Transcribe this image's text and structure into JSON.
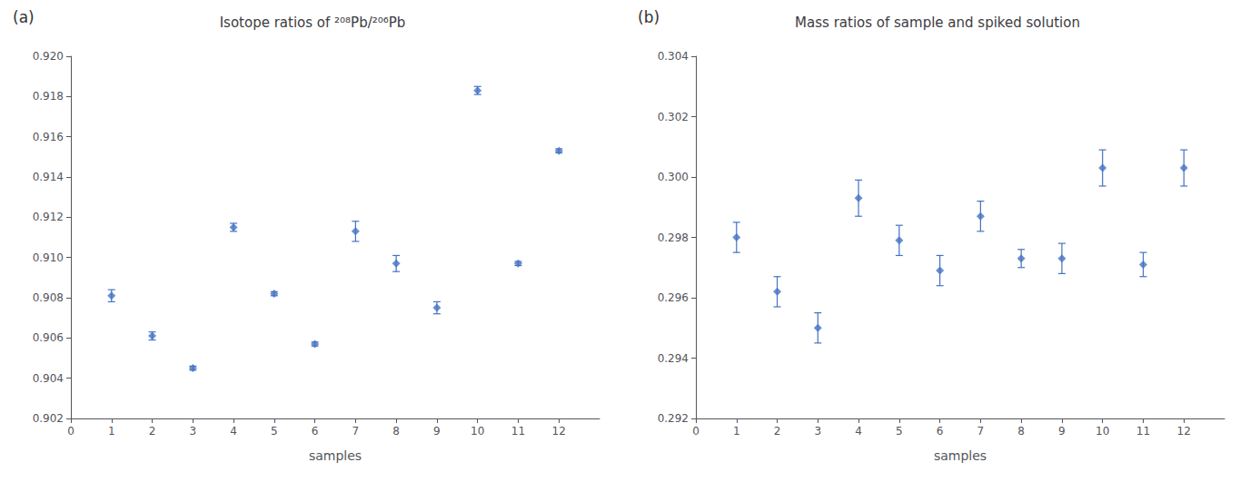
{
  "chart_data": [
    {
      "type": "scatter",
      "title": "Isotope ratios of ²⁰⁸Pb/²⁰⁶Pb",
      "xlabel": "samples",
      "annotations": [
        "(a)"
      ],
      "x": [
        1,
        2,
        3,
        4,
        5,
        6,
        7,
        8,
        9,
        10,
        11,
        12
      ],
      "values": [
        0.9081,
        0.9061,
        0.9045,
        0.9115,
        0.9082,
        0.9057,
        0.9113,
        0.9097,
        0.9075,
        0.9183,
        0.9097,
        0.9153
      ],
      "yerr": [
        0.0003,
        0.0002,
        0.0001,
        0.0002,
        0.0001,
        0.0001,
        0.0005,
        0.0004,
        0.0003,
        0.0002,
        0.0001,
        0.0001
      ],
      "color": "#4472C4",
      "marker": "diamond",
      "grid": false,
      "xlim": [
        0,
        13
      ],
      "xticks": [
        0,
        1,
        2,
        3,
        4,
        5,
        6,
        7,
        8,
        9,
        10,
        11,
        12
      ],
      "ylim": [
        0.902,
        0.92
      ],
      "yticks": [
        0.902,
        0.904,
        0.906,
        0.908,
        {
          "value": 0.91,
          "label": "0.910"
        },
        0.912,
        0.914,
        0.916,
        0.918,
        {
          "value": 0.92,
          "label": "0.920"
        }
      ]
    },
    {
      "type": "scatter",
      "title": "Mass ratios of sample and spiked solution",
      "xlabel": "samples",
      "annotations": [
        "(b)"
      ],
      "x": [
        1,
        2,
        3,
        4,
        5,
        6,
        7,
        8,
        9,
        10,
        11,
        12
      ],
      "values": [
        0.298,
        0.2962,
        0.295,
        0.2993,
        0.2979,
        0.2969,
        0.2987,
        0.2973,
        0.2973,
        0.3003,
        0.2971,
        0.3003
      ],
      "yerr": [
        0.0005,
        0.0005,
        0.0005,
        0.0006,
        0.0005,
        0.0005,
        0.0005,
        0.0003,
        0.0005,
        0.0006,
        0.0004,
        0.0006
      ],
      "color": "#4472C4",
      "marker": "diamond",
      "grid": false,
      "xlim": [
        0,
        13
      ],
      "xticks": [
        0,
        1,
        2,
        3,
        4,
        5,
        6,
        7,
        8,
        9,
        10,
        11,
        12
      ],
      "ylim": [
        0.292,
        0.304
      ],
      "yticks": [
        {
          "value": 0.292,
          "label": "0.292"
        },
        0.294,
        0.296,
        0.298,
        {
          "value": 0.3,
          "label": "0.300"
        },
        0.302,
        0.304
      ]
    }
  ]
}
